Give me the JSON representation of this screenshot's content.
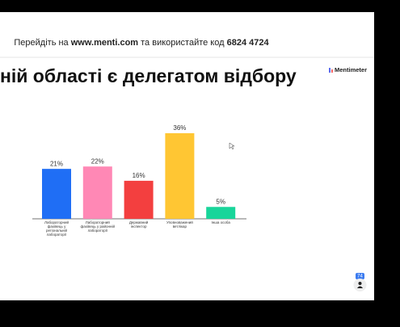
{
  "banner": {
    "prefix": "Перейдіть на",
    "url": "www.menti.com",
    "middle": "та використайте код",
    "code": "6824 4724"
  },
  "logo": "Mentimeter",
  "participants": "74",
  "chart_data": {
    "type": "bar",
    "title": "ній області є делегатом відбору",
    "categories": [
      "Лабораторний фахівець у регіональній лабораторії",
      "Лабораторний фахівець у районній лабораторії",
      "Державний інспектор",
      "Уповноважений ветлікар",
      "Інша особа"
    ],
    "values": [
      21,
      22,
      16,
      36,
      5
    ],
    "value_labels": [
      "21%",
      "22%",
      "16%",
      "36%",
      "5%"
    ],
    "colors": [
      "#1f6ef5",
      "#ff88b5",
      "#f33f3f",
      "#ffc633",
      "#18d59a"
    ]
  }
}
